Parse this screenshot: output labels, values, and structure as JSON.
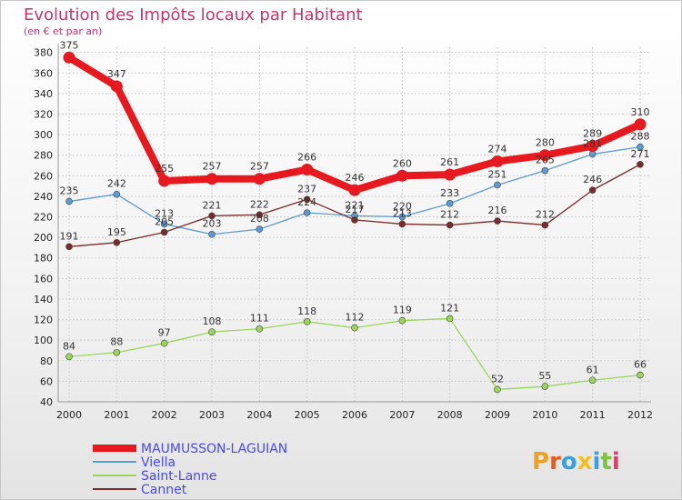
{
  "chart_data": {
    "type": "line",
    "title": "Evolution des Impôts locaux par Habitant",
    "subtitle": "(en € et par an)",
    "xlabel": "",
    "ylabel": "",
    "ylim": [
      40,
      385
    ],
    "y_ticks": [
      40,
      60,
      80,
      100,
      120,
      140,
      160,
      180,
      200,
      220,
      240,
      260,
      280,
      300,
      320,
      340,
      360,
      380
    ],
    "x": [
      "2000",
      "2001",
      "2002",
      "2003",
      "2004",
      "2005",
      "2006",
      "2007",
      "2008",
      "2009",
      "2010",
      "2011",
      "2012"
    ],
    "grid": true,
    "legend_position": "bottom-left",
    "series": [
      {
        "name": "MAUMUSSON-LAGUIAN",
        "color": "#e8191e",
        "emphasis": true,
        "values": [
          375,
          347,
          255,
          257,
          257,
          266,
          246,
          260,
          261,
          274,
          280,
          289,
          310
        ]
      },
      {
        "name": "Viella",
        "color": "#5b9bd5",
        "emphasis": false,
        "values": [
          235,
          242,
          213,
          203,
          208,
          224,
          221,
          220,
          233,
          251,
          265,
          281,
          288
        ]
      },
      {
        "name": "Saint-Lanne",
        "color": "#99d65b",
        "emphasis": false,
        "values": [
          84,
          88,
          97,
          108,
          111,
          118,
          112,
          119,
          121,
          52,
          55,
          61,
          66
        ]
      },
      {
        "name": "Cannet",
        "color": "#7a2a2a",
        "emphasis": false,
        "values": [
          191,
          195,
          205,
          221,
          222,
          237,
          217,
          213,
          212,
          216,
          212,
          246,
          271
        ]
      }
    ]
  },
  "brand": {
    "name": "Proxiti",
    "letters": [
      "P",
      "r",
      "o",
      "x",
      "i",
      "t",
      "i"
    ],
    "letter_colors": [
      "#f0a020",
      "#e85a1e",
      "#3aa0e0",
      "#f0c020",
      "#3aa0e0",
      "#7cc23a",
      "#e83a6a"
    ]
  }
}
